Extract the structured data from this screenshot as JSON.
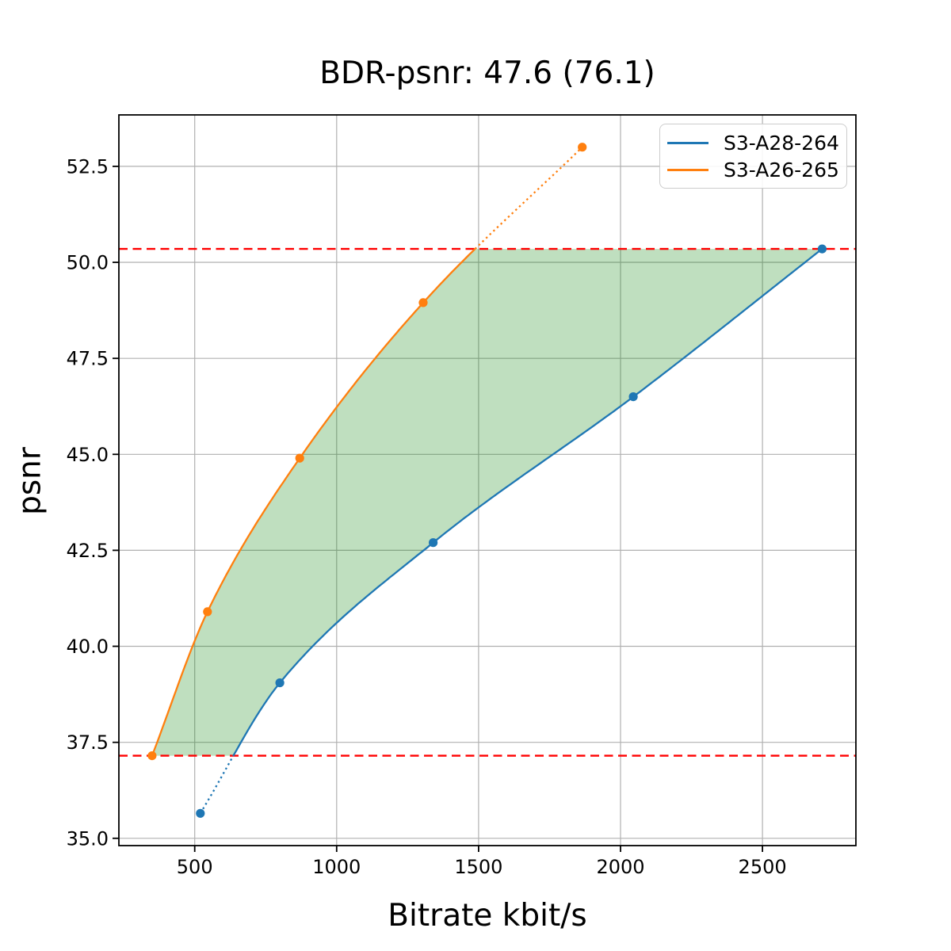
{
  "figure": {
    "title": "BDR-psnr: 47.6 (76.1)",
    "xlabel": "Bitrate kbit/s",
    "ylabel": "psnr"
  },
  "legend": {
    "position": "upper right",
    "entries": [
      {
        "label": "S3-A28-264",
        "color": "#1f77b4"
      },
      {
        "label": "S3-A26-265",
        "color": "#ff7f0e"
      }
    ]
  },
  "chart_data": {
    "type": "line",
    "title": "BDR-psnr: 47.6 (76.1)",
    "xlabel": "Bitrate kbit/s",
    "ylabel": "psnr",
    "xlim": [
      233,
      2829
    ],
    "ylim": [
      34.81,
      53.84
    ],
    "xticks": [
      500,
      1000,
      1500,
      2000,
      2500
    ],
    "yticks": [
      35.0,
      37.5,
      40.0,
      42.5,
      45.0,
      47.5,
      50.0,
      52.5
    ],
    "grid": true,
    "grid_color": "#b0b0b0",
    "series": [
      {
        "name": "S3-A28-264",
        "color": "#1f77b4",
        "marker": "circle",
        "x": [
          520,
          800,
          1340,
          2045,
          2710
        ],
        "y": [
          35.65,
          39.05,
          42.7,
          46.5,
          50.35
        ]
      },
      {
        "name": "S3-A26-265",
        "color": "#ff7f0e",
        "marker": "circle",
        "x": [
          350,
          545,
          870,
          1305,
          1865
        ],
        "y": [
          37.15,
          40.9,
          44.9,
          48.95,
          53.0
        ]
      }
    ],
    "hlines": [
      {
        "y": 37.15,
        "color": "#ff0000",
        "style": "dashed",
        "note": "lower BD overlap bound"
      },
      {
        "y": 50.35,
        "color": "#ff0000",
        "style": "dashed",
        "note": "upper BD overlap bound"
      }
    ],
    "overlap_region": {
      "fill_color": "#008000",
      "alpha": 0.25,
      "description": "area between the two rate-distortion curves clipped to psnr range 37.15-50.35"
    },
    "line_style_note": "curve segments outside the overlap psnr range are dotted, inside solid"
  }
}
